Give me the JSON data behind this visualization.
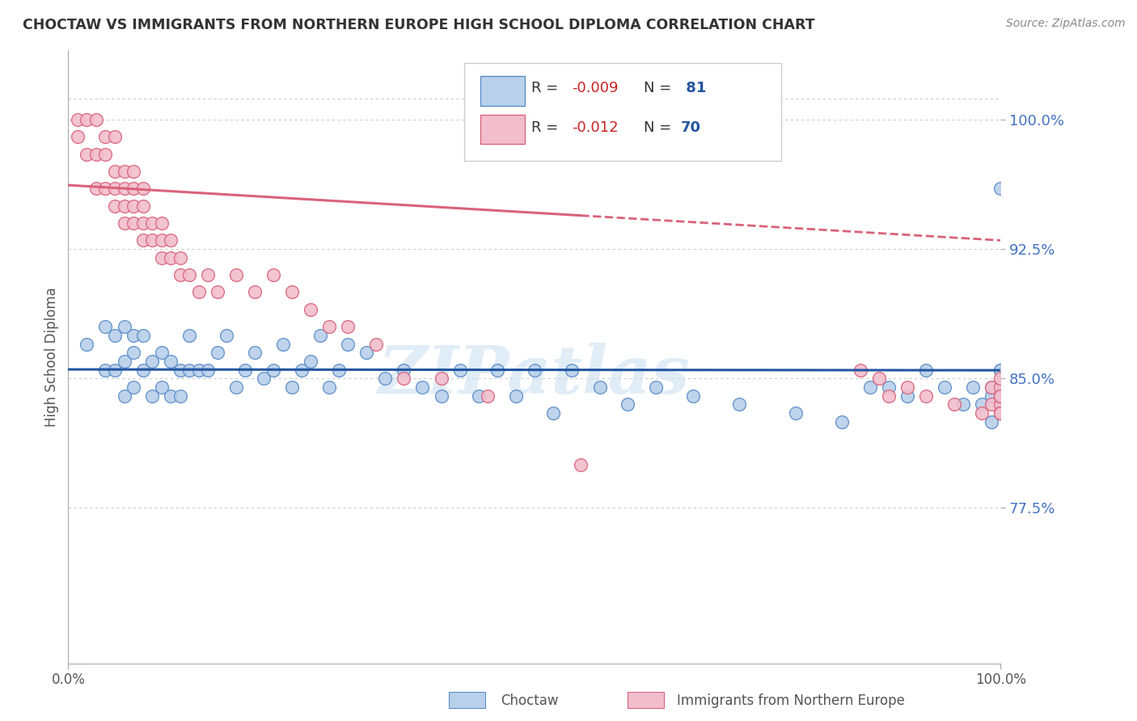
{
  "title": "CHOCTAW VS IMMIGRANTS FROM NORTHERN EUROPE HIGH SCHOOL DIPLOMA CORRELATION CHART",
  "source": "Source: ZipAtlas.com",
  "ylabel": "High School Diploma",
  "ytick_vals": [
    0.775,
    0.85,
    0.925,
    1.0
  ],
  "ytick_labels": [
    "77.5%",
    "85.0%",
    "92.5%",
    "100.0%"
  ],
  "xlim": [
    0.0,
    1.0
  ],
  "ylim": [
    0.685,
    1.04
  ],
  "blue_r": -0.009,
  "blue_n": 81,
  "pink_r": -0.012,
  "pink_n": 70,
  "blue_color": "#b8d0ea",
  "pink_color": "#f2bece",
  "blue_edge_color": "#5b8dc8",
  "pink_edge_color": "#d9637a",
  "blue_line_color": "#2255a0",
  "pink_line_color": "#d9637a",
  "legend_label_blue": "Choctaw",
  "legend_label_pink": "Immigrants from Northern Europe",
  "watermark": "ZIPatlas",
  "blue_scatter_x": [
    0.02,
    0.04,
    0.04,
    0.05,
    0.05,
    0.06,
    0.06,
    0.06,
    0.07,
    0.07,
    0.07,
    0.08,
    0.08,
    0.09,
    0.09,
    0.1,
    0.1,
    0.11,
    0.11,
    0.12,
    0.12,
    0.13,
    0.13,
    0.14,
    0.15,
    0.16,
    0.17,
    0.18,
    0.19,
    0.2,
    0.21,
    0.22,
    0.23,
    0.24,
    0.25,
    0.26,
    0.27,
    0.28,
    0.29,
    0.3,
    0.32,
    0.34,
    0.36,
    0.38,
    0.4,
    0.42,
    0.44,
    0.46,
    0.48,
    0.5,
    0.52,
    0.54,
    0.57,
    0.6,
    0.63,
    0.67,
    0.72,
    0.78,
    0.83,
    0.86,
    0.88,
    0.9,
    0.92,
    0.94,
    0.96,
    0.97,
    0.98,
    0.99,
    0.99,
    0.99,
    1.0,
    1.0,
    1.0,
    1.0,
    1.0,
    1.0,
    1.0,
    1.0,
    1.0,
    1.0,
    1.0
  ],
  "blue_scatter_y": [
    0.87,
    0.855,
    0.88,
    0.855,
    0.875,
    0.84,
    0.86,
    0.88,
    0.845,
    0.865,
    0.875,
    0.855,
    0.875,
    0.84,
    0.86,
    0.845,
    0.865,
    0.84,
    0.86,
    0.84,
    0.855,
    0.855,
    0.875,
    0.855,
    0.855,
    0.865,
    0.875,
    0.845,
    0.855,
    0.865,
    0.85,
    0.855,
    0.87,
    0.845,
    0.855,
    0.86,
    0.875,
    0.845,
    0.855,
    0.87,
    0.865,
    0.85,
    0.855,
    0.845,
    0.84,
    0.855,
    0.84,
    0.855,
    0.84,
    0.855,
    0.83,
    0.855,
    0.845,
    0.835,
    0.845,
    0.84,
    0.835,
    0.83,
    0.825,
    0.845,
    0.845,
    0.84,
    0.855,
    0.845,
    0.835,
    0.845,
    0.835,
    0.84,
    0.845,
    0.825,
    0.845,
    0.845,
    0.845,
    0.845,
    0.845,
    0.845,
    0.855,
    0.845,
    0.84,
    0.855,
    0.96
  ],
  "pink_scatter_x": [
    0.01,
    0.01,
    0.02,
    0.02,
    0.03,
    0.03,
    0.03,
    0.04,
    0.04,
    0.04,
    0.05,
    0.05,
    0.05,
    0.05,
    0.06,
    0.06,
    0.06,
    0.06,
    0.07,
    0.07,
    0.07,
    0.07,
    0.08,
    0.08,
    0.08,
    0.08,
    0.09,
    0.09,
    0.1,
    0.1,
    0.1,
    0.11,
    0.11,
    0.12,
    0.12,
    0.13,
    0.14,
    0.15,
    0.16,
    0.18,
    0.2,
    0.22,
    0.24,
    0.26,
    0.28,
    0.3,
    0.33,
    0.36,
    0.4,
    0.45,
    0.55,
    0.85,
    0.87,
    0.88,
    0.9,
    0.92,
    0.95,
    0.98,
    0.99,
    0.99,
    1.0,
    1.0,
    1.0,
    1.0,
    1.0,
    1.0,
    1.0,
    1.0,
    1.0,
    1.0
  ],
  "pink_scatter_y": [
    0.99,
    1.0,
    0.98,
    1.0,
    0.96,
    0.98,
    1.0,
    0.96,
    0.98,
    0.99,
    0.95,
    0.96,
    0.97,
    0.99,
    0.94,
    0.95,
    0.96,
    0.97,
    0.94,
    0.95,
    0.96,
    0.97,
    0.93,
    0.94,
    0.95,
    0.96,
    0.93,
    0.94,
    0.92,
    0.93,
    0.94,
    0.92,
    0.93,
    0.91,
    0.92,
    0.91,
    0.9,
    0.91,
    0.9,
    0.91,
    0.9,
    0.91,
    0.9,
    0.89,
    0.88,
    0.88,
    0.87,
    0.85,
    0.85,
    0.84,
    0.8,
    0.855,
    0.85,
    0.84,
    0.845,
    0.84,
    0.835,
    0.83,
    0.835,
    0.845,
    0.84,
    0.83,
    0.835,
    0.84,
    0.845,
    0.83,
    0.84,
    0.83,
    0.85,
    0.84
  ]
}
